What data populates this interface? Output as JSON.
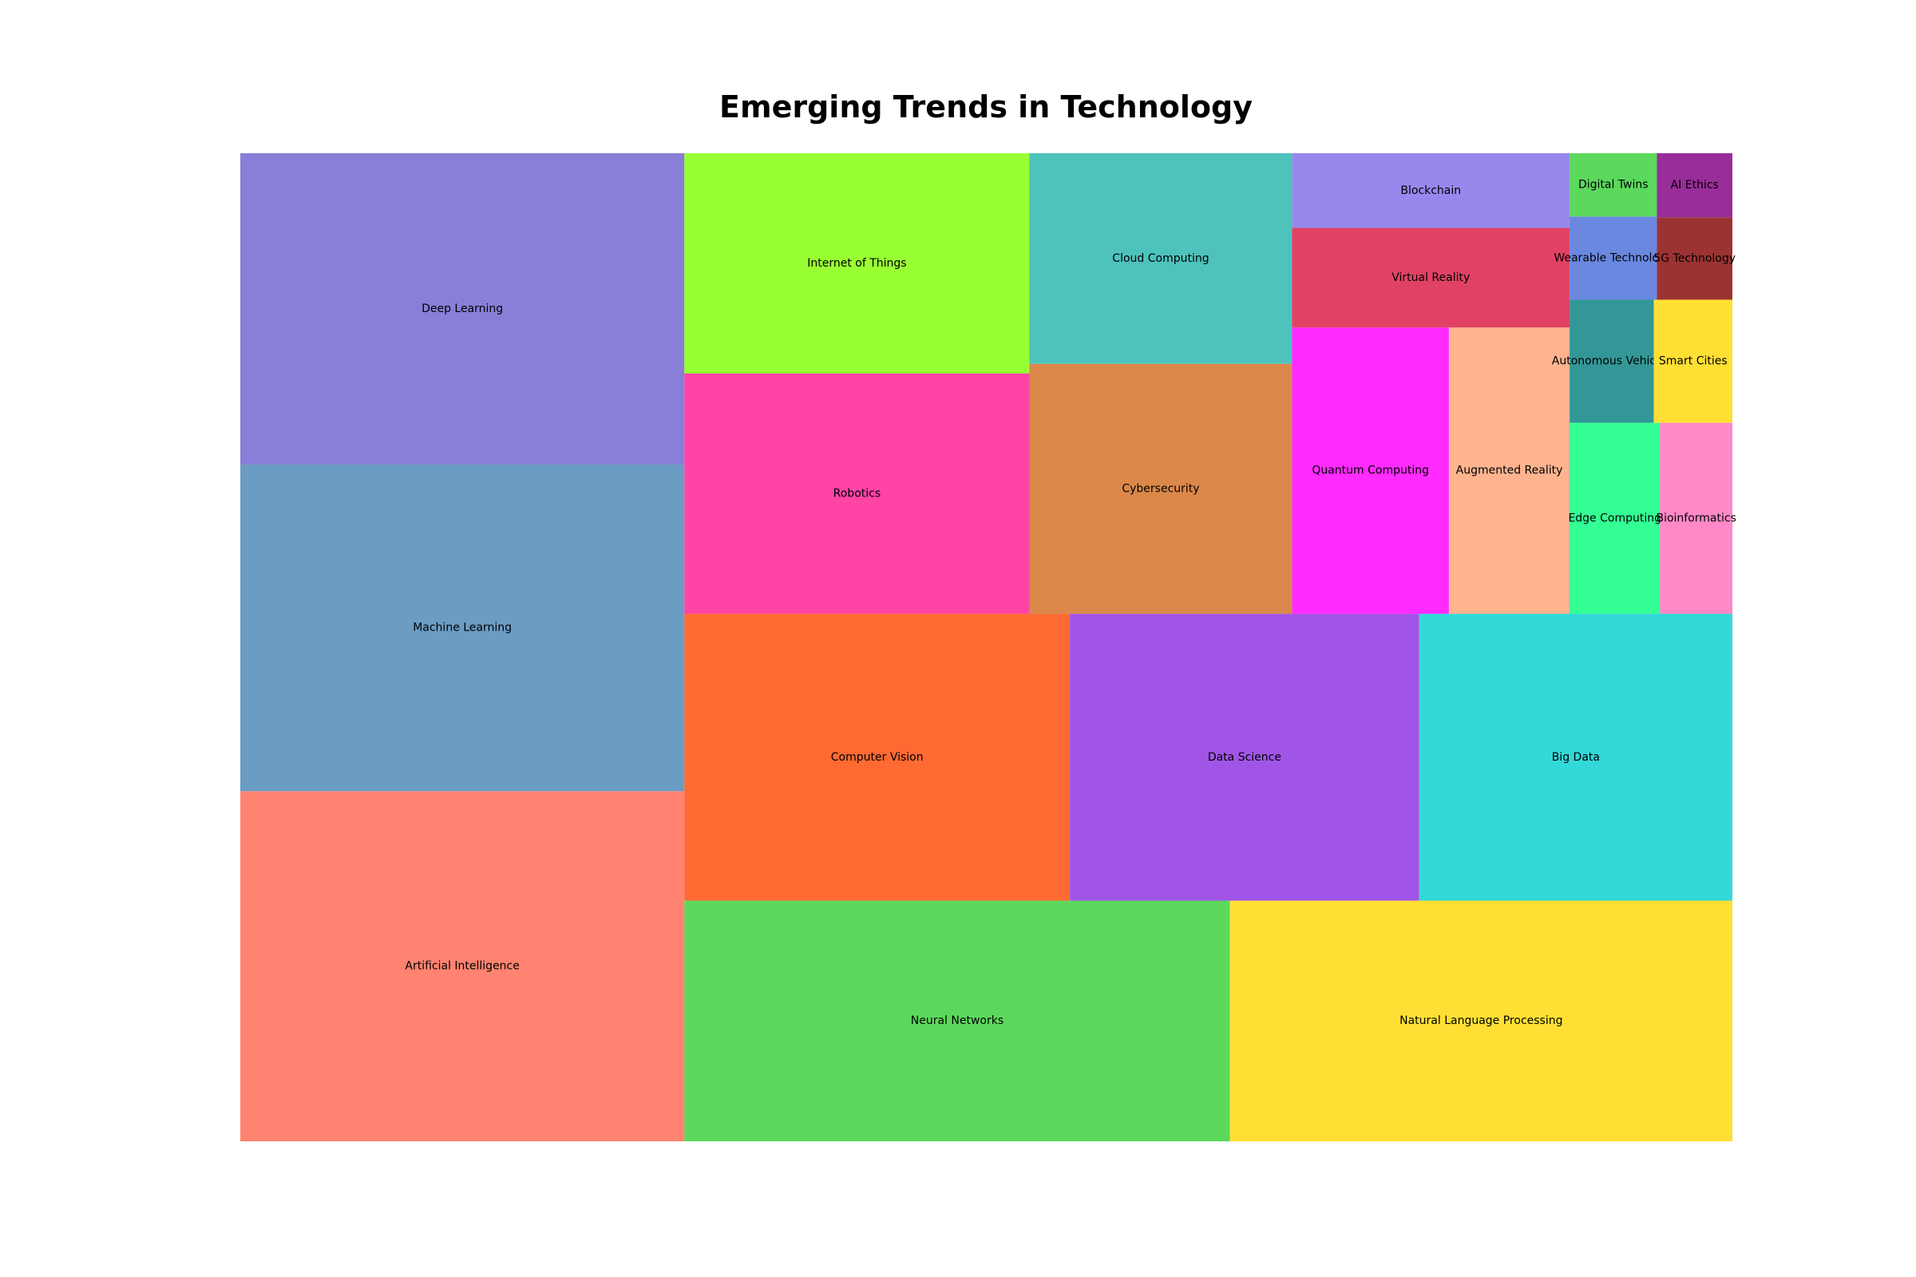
{
  "chart_data": {
    "type": "treemap",
    "title": "Emerging Trends in Technology",
    "categories": [
      "Artificial Intelligence",
      "Machine Learning",
      "Deep Learning",
      "Neural Networks",
      "Natural Language Processing",
      "Computer Vision",
      "Data Science",
      "Big Data",
      "Robotics",
      "Internet of Things",
      "Cybersecurity",
      "Cloud Computing",
      "Quantum Computing",
      "Augmented Reality",
      "Virtual Reality",
      "Blockchain",
      "Edge Computing",
      "Bioinformatics",
      "Autonomous Vehicles",
      "Smart Cities",
      "Wearable Technology",
      "Digital Twins",
      "5G Technology",
      "AI Ethics"
    ],
    "values": [
      45,
      42,
      40,
      38,
      35,
      32,
      29,
      26,
      24,
      22,
      19,
      16,
      13,
      10,
      8,
      6,
      5,
      4,
      3,
      2.8,
      2.1,
      1.6,
      1.8,
      1.4
    ],
    "colors": [
      "#FF8370",
      "#6B9CC3",
      "#897ED8",
      "#5CD85C",
      "#FFDF33",
      "#FF6A33",
      "#A055E6",
      "#33D8D8",
      "#FF44A6",
      "#98FF33",
      "#DB884A",
      "#4DC3BB",
      "#FF2BFF",
      "#FFB38F",
      "#E14264",
      "#9788EE",
      "#33FF94",
      "#FF88C8",
      "#339797",
      "#FFDF33",
      "#6A88E0",
      "#5CD85C",
      "#9C3333",
      "#992D99"
    ]
  }
}
